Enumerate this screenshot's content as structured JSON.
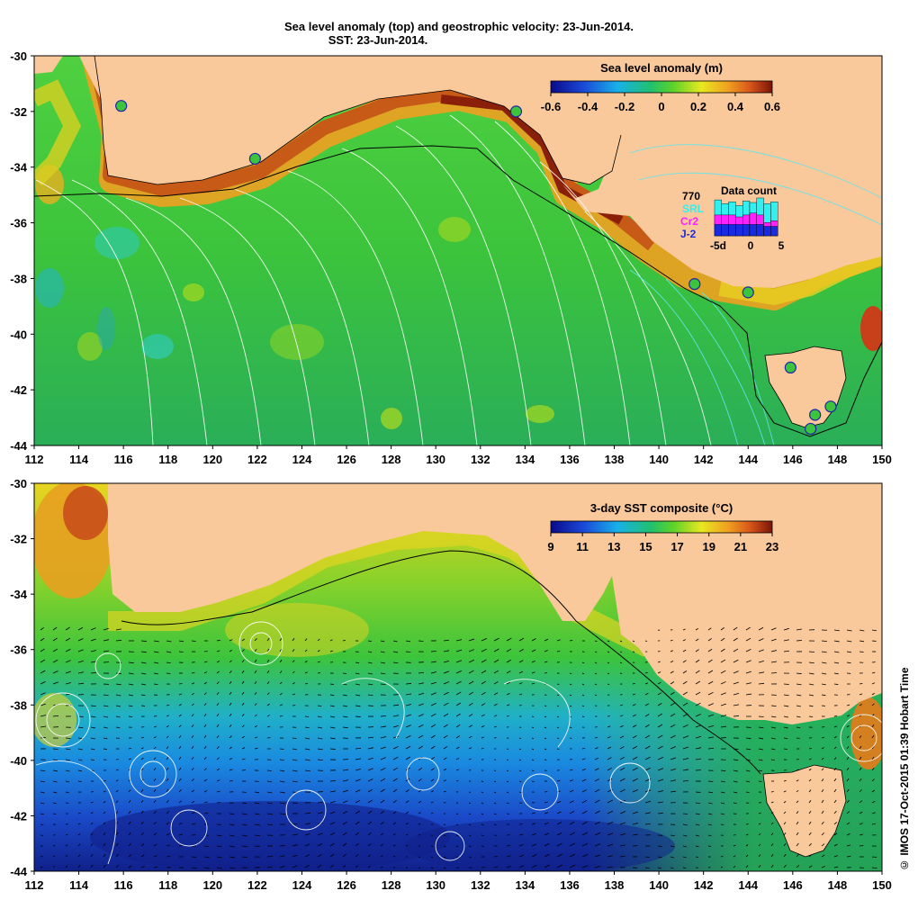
{
  "title_line1": "Sea level anomaly (top) and geostrophic velocity: 23-Jun-2014.",
  "title_line2": "SST: 23-Jun-2014.",
  "credit": "© IMOS 17-Oct-2015 01:39 Hobart Time",
  "colors": {
    "land": "#f9c89b",
    "ocean_green": "#3cc43c",
    "ocean_deep_green": "#26b050",
    "coast_orange": "#e08c1e",
    "coast_brown": "#b04a0a",
    "cold_blue": "#2a6ad8",
    "deep_blue": "#1a3aa8",
    "contour": "#ffffff",
    "contour_cyan": "#62e6f0"
  },
  "chart_data": [
    {
      "type": "heatmap",
      "panel": "top",
      "variable": "Sea level anomaly (m)",
      "colorbar": {
        "label": "Sea level anomaly (m)",
        "ticks": [
          "-0.6",
          "-0.4",
          "-0.2",
          "0",
          "0.2",
          "0.4",
          "0.6"
        ],
        "range": [
          -0.6,
          0.6
        ]
      },
      "xaxis": {
        "ticks": [
          "112",
          "114",
          "116",
          "118",
          "120",
          "122",
          "124",
          "126",
          "128",
          "130",
          "132",
          "134",
          "136",
          "138",
          "140",
          "142",
          "144",
          "146",
          "148",
          "150"
        ],
        "range": [
          112,
          150
        ]
      },
      "yaxis": {
        "ticks": [
          "-30",
          "-32",
          "-34",
          "-36",
          "-38",
          "-40",
          "-42",
          "-44"
        ],
        "range": [
          -44,
          -30
        ]
      },
      "stations": [
        {
          "lon": 115.9,
          "lat": -31.8
        },
        {
          "lon": 121.9,
          "lat": -33.7
        },
        {
          "lon": 133.6,
          "lat": -32.0
        },
        {
          "lon": 141.6,
          "lat": -38.2
        },
        {
          "lon": 144.0,
          "lat": -38.5
        },
        {
          "lon": 145.9,
          "lat": -41.2
        },
        {
          "lon": 147.0,
          "lat": -42.9
        },
        {
          "lon": 147.7,
          "lat": -42.6
        },
        {
          "lon": 146.8,
          "lat": -43.4
        }
      ],
      "inset": {
        "title": "Data count",
        "max_label": "770",
        "missions": [
          "SRL",
          "Cr2",
          "J-2"
        ],
        "mission_colors": [
          "#32f0f0",
          "#ff22ff",
          "#1a2ae0"
        ],
        "x_labels": [
          "-5d",
          "0",
          "5"
        ],
        "bars": [
          {
            "SRL": 0.95,
            "Cr2": 0.55,
            "J-2": 0.3
          },
          {
            "SRL": 0.85,
            "Cr2": 0.55,
            "J-2": 0.3
          },
          {
            "SRL": 0.9,
            "Cr2": 0.55,
            "J-2": 0.3
          },
          {
            "SRL": 0.8,
            "Cr2": 0.5,
            "J-2": 0.3
          },
          {
            "SRL": 0.92,
            "Cr2": 0.55,
            "J-2": 0.3
          },
          {
            "SRL": 0.88,
            "Cr2": 0.6,
            "J-2": 0.3
          },
          {
            "SRL": 1.0,
            "Cr2": 0.55,
            "J-2": 0.3
          },
          {
            "SRL": 0.85,
            "Cr2": 0.35,
            "J-2": 0.25
          },
          {
            "SRL": 0.9,
            "Cr2": 0.4,
            "J-2": 0.25
          }
        ]
      }
    },
    {
      "type": "heatmap",
      "panel": "bottom",
      "variable": "3-day SST composite (°C)",
      "colorbar": {
        "label": "3-day SST composite (°C)",
        "ticks": [
          "9",
          "11",
          "13",
          "15",
          "17",
          "19",
          "21",
          "23"
        ],
        "range": [
          9,
          23
        ]
      },
      "xaxis": {
        "ticks": [
          "112",
          "114",
          "116",
          "118",
          "120",
          "122",
          "124",
          "126",
          "128",
          "130",
          "132",
          "134",
          "136",
          "138",
          "140",
          "142",
          "144",
          "146",
          "148",
          "150"
        ],
        "range": [
          112,
          150
        ]
      },
      "yaxis": {
        "ticks": [
          "-30",
          "-32",
          "-34",
          "-36",
          "-38",
          "-40",
          "-42",
          "-44"
        ],
        "range": [
          -44,
          -30
        ]
      }
    }
  ]
}
